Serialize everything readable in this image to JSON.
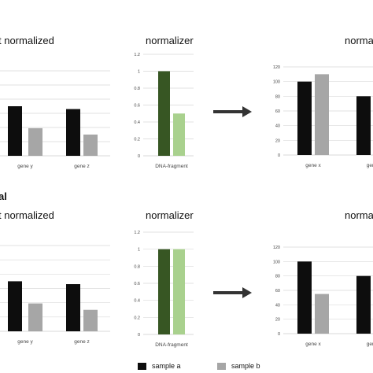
{
  "colors": {
    "sample_a_gene": "#0d0d0d",
    "sample_b_gene": "#a6a6a6",
    "sample_a_norm": "#375623",
    "sample_b_norm": "#a9d18e",
    "grid": "#d9d9d9",
    "arrow": "#333333"
  },
  "sections": [
    {
      "label": ""
    },
    {
      "label": "al"
    }
  ],
  "legend": {
    "sample_a": "sample a",
    "sample_b": "sample b"
  },
  "chart_data": [
    {
      "id": "top-left",
      "type": "bar",
      "title": "t normalized",
      "categories": [
        "gene y",
        "gene z"
      ],
      "series": [
        {
          "name": "sample a",
          "values": [
            70,
            66
          ]
        },
        {
          "name": "sample b",
          "values": [
            39,
            30
          ]
        }
      ],
      "ylim": [
        0,
        120
      ],
      "grid": true
    },
    {
      "id": "top-normalizer",
      "type": "bar",
      "title": "normalizer",
      "categories": [
        "DNA-fragment"
      ],
      "series": [
        {
          "name": "sample a",
          "values": [
            1
          ]
        },
        {
          "name": "sample b",
          "values": [
            0.5
          ]
        }
      ],
      "yticks": [
        "0",
        "0.2",
        "0.4",
        "0.6",
        "0.8",
        "1",
        "1.2"
      ],
      "ylim": [
        0,
        1.2
      ],
      "grid": true
    },
    {
      "id": "top-right",
      "type": "bar",
      "title": "norma",
      "categories": [
        "gene x",
        "gene"
      ],
      "series": [
        {
          "name": "sample a",
          "values": [
            100,
            80
          ]
        },
        {
          "name": "sample b",
          "values": [
            110,
            null
          ]
        }
      ],
      "yticks": [
        "0",
        "20",
        "40",
        "60",
        "80",
        "100",
        "120"
      ],
      "ylim": [
        0,
        120
      ],
      "grid": true
    },
    {
      "id": "bottom-left",
      "type": "bar",
      "title": "t normalized",
      "categories": [
        "gene y",
        "gene z"
      ],
      "series": [
        {
          "name": "sample a",
          "values": [
            70,
            66
          ]
        },
        {
          "name": "sample b",
          "values": [
            39,
            30
          ]
        }
      ],
      "ylim": [
        0,
        120
      ],
      "grid": true
    },
    {
      "id": "bottom-normalizer",
      "type": "bar",
      "title": "normalizer",
      "categories": [
        "DNA-fragment"
      ],
      "series": [
        {
          "name": "sample a",
          "values": [
            1
          ]
        },
        {
          "name": "sample b",
          "values": [
            1
          ]
        }
      ],
      "yticks": [
        "0",
        "0.2",
        "0.4",
        "0.6",
        "0.8",
        "1",
        "1.2"
      ],
      "ylim": [
        0,
        1.2
      ],
      "grid": true
    },
    {
      "id": "bottom-right",
      "type": "bar",
      "title": "norma",
      "categories": [
        "gene x",
        "gene"
      ],
      "series": [
        {
          "name": "sample a",
          "values": [
            100,
            80
          ]
        },
        {
          "name": "sample b",
          "values": [
            55,
            null
          ]
        }
      ],
      "yticks": [
        "0",
        "20",
        "40",
        "60",
        "80",
        "100",
        "120"
      ],
      "ylim": [
        0,
        120
      ],
      "grid": true
    }
  ]
}
